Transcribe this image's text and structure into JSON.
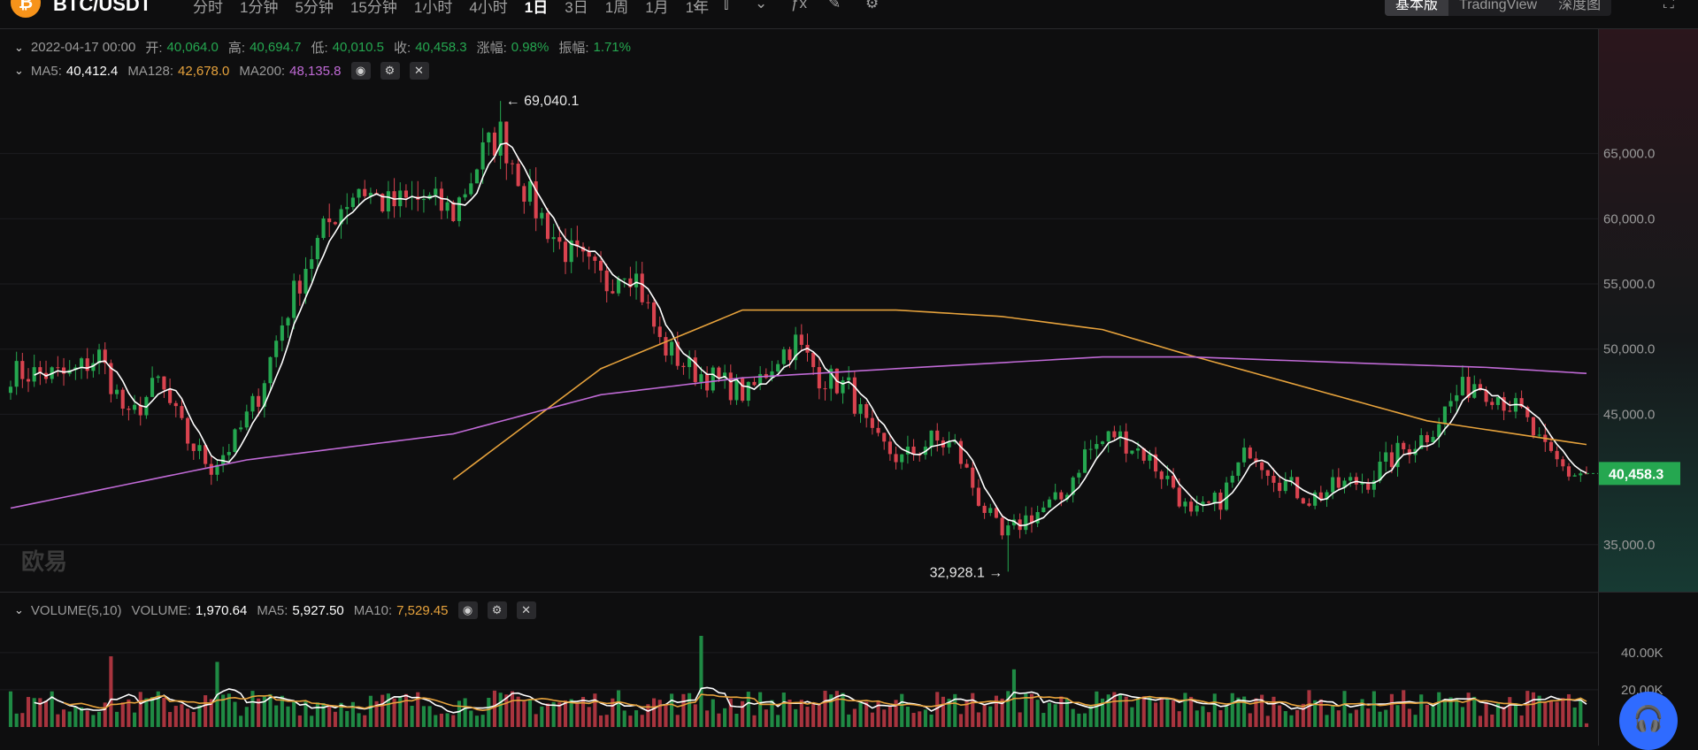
{
  "header": {
    "coin_letter": "₿",
    "pair": "BTC/USDT",
    "intervals": [
      "分时",
      "1分钟",
      "5分钟",
      "15分钟",
      "1小时",
      "4小时",
      "1日",
      "3日",
      "1周",
      "1月",
      "1年"
    ],
    "active_interval": "1日",
    "modes": [
      "基本版",
      "TradingView",
      "深度图"
    ],
    "active_mode": "基本版"
  },
  "ohlc_legend": {
    "date": "2022-04-17 00:00",
    "open_label": "开:",
    "open": "40,064.0",
    "high_label": "高:",
    "high": "40,694.7",
    "low_label": "低:",
    "low": "40,010.5",
    "close_label": "收:",
    "close": "40,458.3",
    "change_label": "涨幅:",
    "change": "0.98%",
    "amplitude_label": "振幅:",
    "amplitude": "1.71%"
  },
  "ma_legend": {
    "ma5_label": "MA5:",
    "ma5": "40,412.4",
    "ma128_label": "MA128:",
    "ma128": "42,678.0",
    "ma200_label": "MA200:",
    "ma200": "48,135.8"
  },
  "volume_legend": {
    "title": "VOLUME(5,10)",
    "vol_label": "VOLUME:",
    "vol": "1,970.64",
    "ma5_label": "MA5:",
    "ma5": "5,927.50",
    "ma10_label": "MA10:",
    "ma10": "7,529.45"
  },
  "watermark": "欧易",
  "colors": {
    "up": "#25a750",
    "down": "#d9434f",
    "ma5": "#ffffff",
    "ma128": "#e6a23c",
    "ma200": "#c06ad6",
    "support": "#2f6bff"
  },
  "icons": {
    "chart_type": "candlestick-icon",
    "draw": "pencil-icon",
    "indicator": "fx-icon",
    "settings": "gear-icon",
    "eye": "eye-icon",
    "close": "close-icon",
    "support": "headset-icon",
    "fullscreen": "fullscreen-icon"
  },
  "chart_data": {
    "type": "candlestick",
    "y_axis_ticks": [
      "65,000.0",
      "60,000.0",
      "55,000.0",
      "50,000.0",
      "45,000.0",
      "35,000.0"
    ],
    "y_axis_values": [
      65000,
      60000,
      55000,
      50000,
      45000,
      35000
    ],
    "ylim": [
      32000,
      70000
    ],
    "last_price": 40458.3,
    "last_price_label": "40,458.3",
    "max_annotation": {
      "value": 69040.1,
      "label": "69,040.1"
    },
    "min_annotation": {
      "value": 32928.1,
      "label": "32,928.1"
    },
    "close_anchors": [
      [
        0,
        48200
      ],
      [
        10,
        48000
      ],
      [
        15,
        49500
      ],
      [
        20,
        44500
      ],
      [
        25,
        47500
      ],
      [
        30,
        43000
      ],
      [
        34,
        41000
      ],
      [
        38,
        43000
      ],
      [
        42,
        46500
      ],
      [
        46,
        52000
      ],
      [
        50,
        56500
      ],
      [
        55,
        60500
      ],
      [
        59,
        62500
      ],
      [
        64,
        61000
      ],
      [
        70,
        61500
      ],
      [
        75,
        60500
      ],
      [
        80,
        65000
      ],
      [
        83,
        66500
      ],
      [
        88,
        61500
      ],
      [
        93,
        58000
      ],
      [
        97,
        56500
      ],
      [
        101,
        55000
      ],
      [
        104,
        56500
      ],
      [
        106,
        55500
      ],
      [
        110,
        50500
      ],
      [
        115,
        48500
      ],
      [
        120,
        47500
      ],
      [
        125,
        46500
      ],
      [
        130,
        49500
      ],
      [
        133,
        50500
      ],
      [
        137,
        48000
      ],
      [
        142,
        47000
      ],
      [
        146,
        43000
      ],
      [
        151,
        41500
      ],
      [
        156,
        43000
      ],
      [
        160,
        42500
      ],
      [
        164,
        38500
      ],
      [
        168,
        35500
      ],
      [
        172,
        37000
      ],
      [
        178,
        38500
      ],
      [
        182,
        42000
      ],
      [
        187,
        43500
      ],
      [
        192,
        42000
      ],
      [
        197,
        39500
      ],
      [
        200,
        37000
      ],
      [
        205,
        38500
      ],
      [
        210,
        42500
      ],
      [
        215,
        40000
      ],
      [
        220,
        38500
      ],
      [
        225,
        39500
      ],
      [
        230,
        40000
      ],
      [
        235,
        42000
      ],
      [
        240,
        43500
      ],
      [
        245,
        46500
      ],
      [
        248,
        47500
      ],
      [
        252,
        46500
      ],
      [
        256,
        45000
      ],
      [
        260,
        42000
      ],
      [
        264,
        40500
      ],
      [
        267,
        40458
      ]
    ],
    "ma128_anchors": [
      [
        75,
        40000
      ],
      [
        100,
        48500
      ],
      [
        124,
        53000
      ],
      [
        150,
        53000
      ],
      [
        168,
        52500
      ],
      [
        185,
        51500
      ],
      [
        200,
        49500
      ],
      [
        220,
        47000
      ],
      [
        240,
        44500
      ],
      [
        267,
        42678
      ]
    ],
    "ma200_anchors": [
      [
        0,
        37800
      ],
      [
        40,
        41500
      ],
      [
        75,
        43500
      ],
      [
        100,
        46500
      ],
      [
        124,
        47800
      ],
      [
        150,
        48500
      ],
      [
        185,
        49400
      ],
      [
        200,
        49400
      ],
      [
        230,
        48900
      ],
      [
        250,
        48600
      ],
      [
        267,
        48136
      ]
    ],
    "volume_axis_ticks": [
      "40.00K",
      "20.00K"
    ],
    "volume_axis_values": [
      40000,
      20000
    ],
    "volume_ylim": [
      0,
      58000
    ],
    "volume_spikes": [
      [
        17,
        38000
      ],
      [
        35,
        35000
      ],
      [
        117,
        49000
      ],
      [
        170,
        31000
      ]
    ],
    "volume_last": 1970.64
  }
}
